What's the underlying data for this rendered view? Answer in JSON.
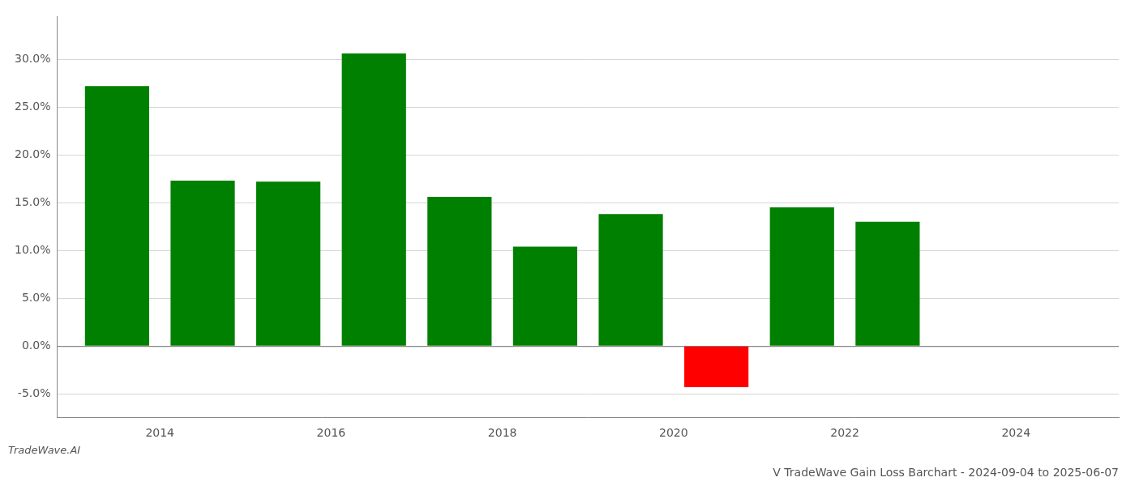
{
  "chart_data": {
    "type": "bar",
    "title": "V TradeWave Gain Loss Barchart - 2024-09-04 to 2025-06-07",
    "subtitle": "TradeWave.AI",
    "x": [
      2013.5,
      2014.5,
      2015.5,
      2016.5,
      2017.5,
      2018.5,
      2019.5,
      2020.5,
      2021.5,
      2022.5
    ],
    "values": [
      0.272,
      0.173,
      0.172,
      0.306,
      0.156,
      0.104,
      0.138,
      -0.043,
      0.145,
      0.13
    ],
    "colors": [
      "#008000",
      "#008000",
      "#008000",
      "#008000",
      "#008000",
      "#008000",
      "#008000",
      "#ff0000",
      "#008000",
      "#008000"
    ],
    "xlim": [
      2012.8,
      2025.2
    ],
    "xticks": [
      2014,
      2016,
      2018,
      2020,
      2022,
      2024
    ],
    "ylim": [
      -0.075,
      0.345
    ],
    "yticks": [
      {
        "value": -0.05,
        "label": "-5.0%"
      },
      {
        "value": 0.0,
        "label": "0.0%"
      },
      {
        "value": 0.05,
        "label": "5.0%"
      },
      {
        "value": 0.1,
        "label": "10.0%"
      },
      {
        "value": 0.15,
        "label": "15.0%"
      },
      {
        "value": 0.2,
        "label": "20.0%"
      },
      {
        "value": 0.25,
        "label": "25.0%"
      },
      {
        "value": 0.3,
        "label": "30.0%"
      }
    ],
    "grid": true
  }
}
